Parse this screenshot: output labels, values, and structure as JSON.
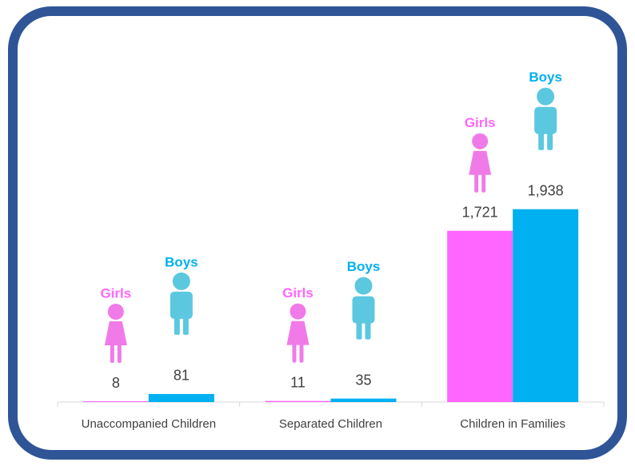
{
  "chart_data": {
    "type": "bar",
    "categories": [
      "Unaccompanied Children",
      "Separated Children",
      "Children in Families"
    ],
    "series": [
      {
        "name": "Girls",
        "color": "#ff66ff",
        "values": [
          8,
          11,
          1721
        ],
        "value_labels": [
          "8",
          "11",
          "1,721"
        ]
      },
      {
        "name": "Boys",
        "color": "#00b0f0",
        "values": [
          81,
          35,
          1938
        ],
        "value_labels": [
          "81",
          "35",
          "1,938"
        ]
      }
    ],
    "ylim": [
      0,
      2000
    ],
    "grid": false
  }
}
